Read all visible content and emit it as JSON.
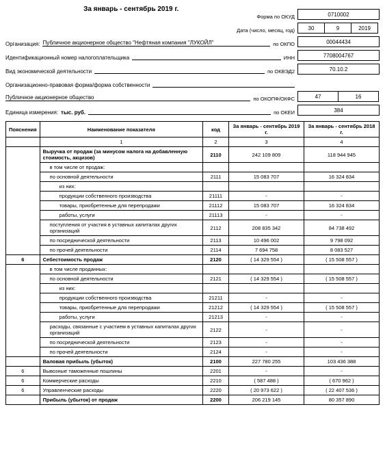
{
  "header": {
    "period_title": "За январь - сентябрь 2019 г.",
    "okud_label": "Форма по ОКУД",
    "okud_value": "0710002",
    "date_label": "Дата (число, месяц, год)",
    "date_day": "30",
    "date_month": "9",
    "date_year": "2019",
    "org_label": "Организация:",
    "org_value": "Публичное акционерное общество \"Нефтяная компания \"ЛУКОЙЛ\"",
    "okpo_label": "по ОКПО",
    "okpo_value": "00044434",
    "inn_label": "Идентификационный номер налогоплательщика",
    "inn_right": "ИНН",
    "inn_value": "7708004767",
    "activity_label": "Вид экономической деятельности",
    "okved_label": "по ОКВЭД2",
    "okved_value": "70.10.2",
    "legal_label": "Организационно-правовая форма/форма собственности",
    "legal_value": "Публичное акционерное общество",
    "okopf_label": "по ОКОПФ/ОКФС",
    "okopf_v1": "47",
    "okopf_v2": "16",
    "unit_label": "Единица измерения:",
    "unit_value": "тыс. руб.",
    "okei_label": "по ОКЕИ",
    "okei_value": "384"
  },
  "cols": {
    "notes": "Пояснения",
    "name": "Наименование показателя",
    "code": "код",
    "cur": "За январь - сентябрь 2019 г.",
    "prev": "За январь - сентябрь 2018 г.",
    "c1": "1",
    "c2": "2",
    "c3": "3",
    "c4": "4"
  },
  "rows": [
    {
      "notes": "",
      "name": "Выручка от продаж (за минусом налога на добавленную стоимость, акцизов)",
      "code": "2110",
      "cur": "242 109 809",
      "prev": "118 944 945",
      "indent": 0,
      "bold": true,
      "notesSpan": 10
    },
    {
      "name": "в том числе от продаж:",
      "code": "",
      "cur": "",
      "prev": "",
      "indent": 1
    },
    {
      "name": "по основной деятельности",
      "code": "2111",
      "cur": "15 083 707",
      "prev": "16 324 834",
      "indent": 1
    },
    {
      "name": "из них:",
      "code": "",
      "cur": "",
      "prev": "",
      "indent": 2
    },
    {
      "name": "продукции собственного производства",
      "code": "21111",
      "cur": "-",
      "prev": "-",
      "indent": 2
    },
    {
      "name": "товары, приобретенные для перепродажи",
      "code": "21112",
      "cur": "15 083 707",
      "prev": "16 324 834",
      "indent": 2
    },
    {
      "name": "работы, услуги",
      "code": "21113",
      "cur": "-",
      "prev": "-",
      "indent": 2
    },
    {
      "name": "поступления от участия в уставных капиталах других организаций",
      "code": "2112",
      "cur": "208 835 342",
      "prev": "84 738 492",
      "indent": 1
    },
    {
      "name": "по посреднической деятельности",
      "code": "2113",
      "cur": "10 496 002",
      "prev": "9 798 092",
      "indent": 1
    },
    {
      "name": "по прочей деятельности",
      "code": "2114",
      "cur": "7 694 758",
      "prev": "8 083 527",
      "indent": 1
    },
    {
      "notes": "6",
      "name": "Себестоимость продаж",
      "code": "2120",
      "cur": "( 14 329 554 )",
      "prev": "( 15 508 557 )",
      "indent": 0,
      "bold": true
    },
    {
      "notes": "",
      "name": "в том числе проданных:",
      "code": "",
      "cur": "",
      "prev": "",
      "indent": 1,
      "notesSpan": 9
    },
    {
      "name": "по основной деятельности",
      "code": "2121",
      "cur": "( 14 329 554 )",
      "prev": "( 15 508 557 )",
      "indent": 1
    },
    {
      "name": "из них:",
      "code": "",
      "cur": "",
      "prev": "",
      "indent": 2
    },
    {
      "name": "продукции собственного производства",
      "code": "21211",
      "cur": "-",
      "prev": "-",
      "indent": 2
    },
    {
      "name": "товары, приобретенные для перепродажи",
      "code": "21212",
      "cur": "( 14 329 554 )",
      "prev": "( 15 508 557 )",
      "indent": 2
    },
    {
      "name": "работы, услуги",
      "code": "21213",
      "cur": "-",
      "prev": "-",
      "indent": 2
    },
    {
      "name": "расходы, связанные с участием в уставных капиталах других организаций",
      "code": "2122",
      "cur": "-",
      "prev": "-",
      "indent": 1
    },
    {
      "name": "по посреднической деятельности",
      "code": "2123",
      "cur": "-",
      "prev": "-",
      "indent": 1
    },
    {
      "name": "по прочей деятельности",
      "code": "2124",
      "cur": "-",
      "prev": "-",
      "indent": 1
    },
    {
      "notes": "",
      "name": "Валовая прибыль (убыток)",
      "code": "2100",
      "cur": "227 780 255",
      "prev": "103 436 388",
      "indent": 0,
      "bold": true
    },
    {
      "notes": "6",
      "name": "Вывозные таможенные пошлины",
      "code": "2201",
      "cur": "-",
      "prev": "-",
      "indent": 0
    },
    {
      "notes": "6",
      "name": "Коммерческие расходы",
      "code": "2210",
      "cur": "( 587 488 )",
      "prev": "( 670 962 )",
      "indent": 0
    },
    {
      "notes": "6",
      "name": "Управленческие расходы",
      "code": "2220",
      "cur": "( 20 973 622 )",
      "prev": "( 22 407 536 )",
      "indent": 0
    },
    {
      "notes": "",
      "name": "Прибыль (убыток) от продаж",
      "code": "2200",
      "cur": "206 219 145",
      "prev": "80 357 890",
      "indent": 0,
      "bold": true
    }
  ]
}
